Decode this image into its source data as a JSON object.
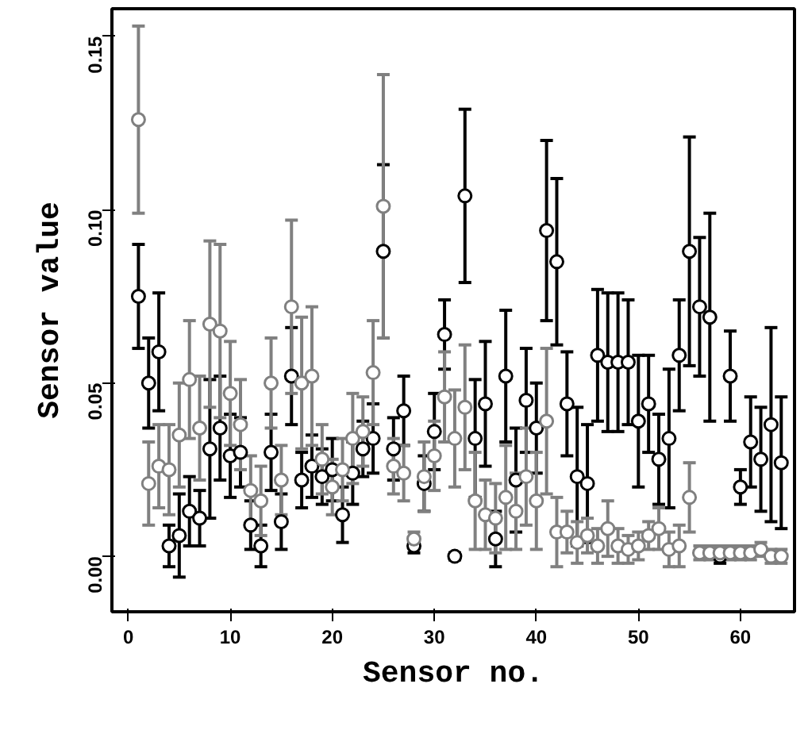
{
  "chart_data": {
    "type": "scatter",
    "xlabel": "Sensor no.",
    "ylabel": "Sensor value",
    "x": [
      1,
      2,
      3,
      4,
      5,
      6,
      7,
      8,
      9,
      10,
      11,
      12,
      13,
      14,
      15,
      16,
      17,
      18,
      19,
      20,
      21,
      22,
      23,
      24,
      25,
      26,
      27,
      28,
      29,
      30,
      31,
      32,
      33,
      34,
      35,
      36,
      37,
      38,
      39,
      40,
      41,
      42,
      43,
      44,
      45,
      46,
      47,
      48,
      49,
      50,
      51,
      52,
      53,
      54,
      55,
      56,
      57,
      58,
      59,
      60,
      61,
      62,
      63,
      64
    ],
    "series": [
      {
        "color": "#000000",
        "values": [
          0.075,
          0.05,
          0.059,
          0.003,
          0.006,
          0.013,
          0.011,
          0.031,
          0.037,
          0.029,
          0.03,
          0.009,
          0.003,
          0.03,
          0.01,
          0.052,
          0.022,
          0.026,
          0.023,
          0.025,
          0.012,
          0.024,
          0.031,
          0.034,
          0.088,
          0.031,
          0.042,
          0.003,
          0.021,
          0.036,
          0.064,
          0.0,
          0.104,
          0.034,
          0.044,
          0.005,
          0.052,
          0.022,
          0.045,
          0.037,
          0.094,
          0.085,
          0.044,
          0.023,
          0.021,
          0.058,
          0.056,
          0.056,
          0.056,
          0.039,
          0.044,
          0.028,
          0.034,
          0.058,
          0.088,
          0.072,
          0.069,
          0.0,
          0.052,
          0.02,
          0.033,
          0.028,
          0.038,
          0.027
        ],
        "errors": [
          0.015,
          0.013,
          0.017,
          0.006,
          0.012,
          0.01,
          0.008,
          0.02,
          0.015,
          0.012,
          0.01,
          0.007,
          0.006,
          0.011,
          0.008,
          0.014,
          0.008,
          0.009,
          0.008,
          0.009,
          0.008,
          0.009,
          0.008,
          0.01,
          0.025,
          0.009,
          0.01,
          0.002,
          0.008,
          0.011,
          0.01,
          0.001,
          0.025,
          0.017,
          0.018,
          0.008,
          0.019,
          0.015,
          0.015,
          0.013,
          0.026,
          0.024,
          0.015,
          0.02,
          0.017,
          0.019,
          0.02,
          0.02,
          0.018,
          0.019,
          0.014,
          0.013,
          0.02,
          0.016,
          0.033,
          0.02,
          0.03,
          0.002,
          0.013,
          0.005,
          0.013,
          0.015,
          0.028,
          0.019
        ]
      },
      {
        "color": "#808080",
        "values": [
          0.126,
          0.021,
          0.026,
          0.025,
          0.035,
          0.051,
          0.037,
          0.067,
          0.065,
          0.047,
          0.038,
          0.019,
          0.016,
          0.05,
          0.022,
          0.072,
          0.05,
          0.052,
          0.028,
          0.02,
          0.025,
          0.034,
          0.036,
          0.053,
          0.101,
          0.026,
          0.024,
          0.005,
          0.023,
          0.029,
          0.046,
          0.034,
          0.043,
          0.016,
          0.012,
          0.011,
          0.017,
          0.013,
          0.023,
          0.016,
          0.039,
          0.007,
          0.007,
          0.004,
          0.006,
          0.003,
          0.008,
          0.003,
          0.002,
          0.003,
          0.006,
          0.008,
          0.002,
          0.003,
          0.017,
          0.001,
          0.001,
          0.001,
          0.001,
          0.001,
          0.001,
          0.002,
          0.0,
          0.0
        ],
        "errors": [
          0.027,
          0.012,
          0.012,
          0.013,
          0.015,
          0.017,
          0.015,
          0.024,
          0.025,
          0.015,
          0.013,
          0.01,
          0.01,
          0.013,
          0.01,
          0.025,
          0.019,
          0.02,
          0.01,
          0.008,
          0.009,
          0.013,
          0.01,
          0.015,
          0.038,
          0.008,
          0.008,
          0.002,
          0.01,
          0.01,
          0.013,
          0.014,
          0.018,
          0.014,
          0.01,
          0.01,
          0.015,
          0.011,
          0.014,
          0.014,
          0.021,
          0.01,
          0.006,
          0.006,
          0.005,
          0.005,
          0.008,
          0.005,
          0.004,
          0.004,
          0.004,
          0.006,
          0.005,
          0.006,
          0.01,
          0.002,
          0.002,
          0.002,
          0.002,
          0.002,
          0.002,
          0.002,
          0.002,
          0.002
        ]
      }
    ],
    "xlim": [
      -1.6,
      65.3
    ],
    "ylim": [
      -0.016,
      0.158
    ],
    "xticks": [
      0,
      10,
      20,
      30,
      40,
      50,
      60
    ],
    "yticks": [
      {
        "value": 0,
        "label": "0.00"
      },
      {
        "value": 0.05,
        "label": "0.05"
      },
      {
        "value": 0.1,
        "label": "0.10"
      },
      {
        "value": 0.15,
        "label": "0.15"
      }
    ],
    "marker": "circle",
    "grid": false
  }
}
